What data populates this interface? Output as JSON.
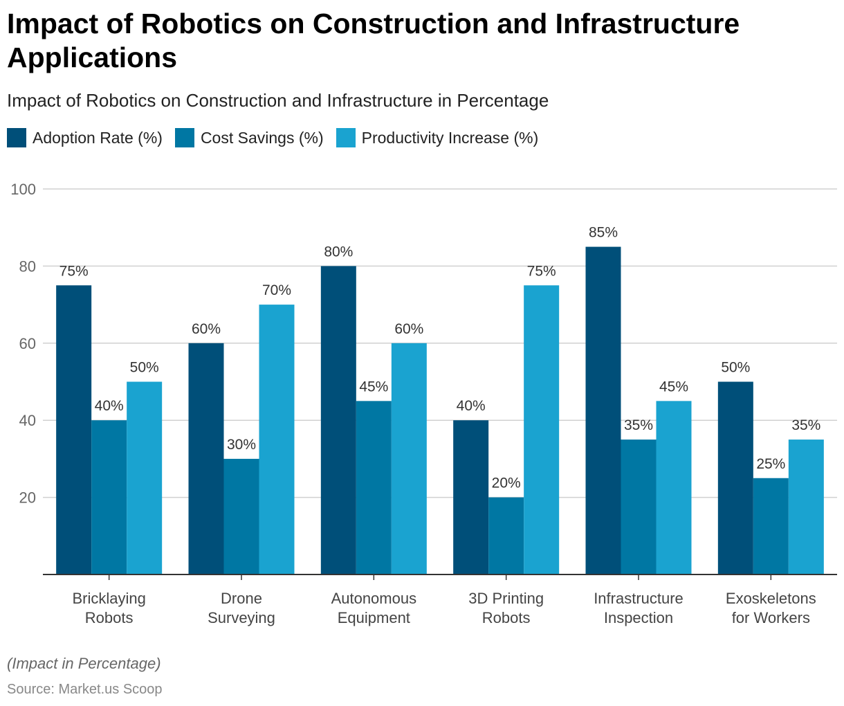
{
  "title": "Impact of Robotics on Construction and Infrastructure Applications",
  "subtitle": "Impact of Robotics on Construction and Infrastructure in Percentage",
  "note": "(Impact in Percentage)",
  "source": "Source: Market.us Scoop",
  "chart_data": {
    "type": "bar",
    "categories": [
      [
        "Bricklaying",
        "Robots"
      ],
      [
        "Drone",
        "Surveying"
      ],
      [
        "Autonomous",
        "Equipment"
      ],
      [
        "3D Printing",
        "Robots"
      ],
      [
        "Infrastructure",
        "Inspection"
      ],
      [
        "Exoskeletons",
        "for Workers"
      ]
    ],
    "series": [
      {
        "name": "Adoption Rate (%)",
        "color": "#004f79",
        "values": [
          75,
          60,
          80,
          40,
          85,
          50
        ]
      },
      {
        "name": "Cost Savings (%)",
        "color": "#0077a3",
        "values": [
          40,
          30,
          45,
          20,
          35,
          25
        ]
      },
      {
        "name": "Productivity Increase (%)",
        "color": "#1aa3d0",
        "values": [
          50,
          70,
          60,
          75,
          45,
          35
        ]
      }
    ],
    "ylim": [
      0,
      100
    ],
    "yticks": [
      20,
      40,
      60,
      80,
      100
    ],
    "grid": true,
    "legend": "top-left",
    "label_suffix": "%"
  }
}
